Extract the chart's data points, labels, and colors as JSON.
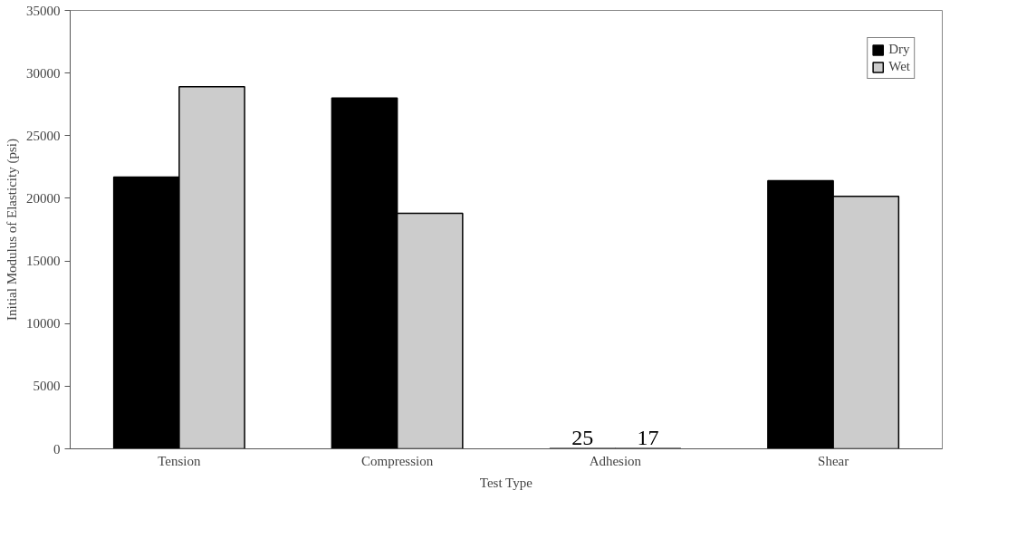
{
  "chart_data": {
    "type": "bar",
    "xlabel": "Test Type",
    "ylabel": "Initial Modulus of Elasticity (psi)",
    "categories": [
      "Tension",
      "Compression",
      "Adhesion",
      "Shear"
    ],
    "series": [
      {
        "name": "Dry",
        "color": "#000000",
        "values": [
          21700,
          28000,
          25,
          21400
        ],
        "value_labels": [
          null,
          null,
          "25",
          null
        ]
      },
      {
        "name": "Wet",
        "color": "#cccccc",
        "values": [
          28900,
          18800,
          17,
          20150
        ],
        "value_labels": [
          null,
          null,
          "17",
          null
        ]
      }
    ],
    "ylim": [
      0,
      35000
    ],
    "yticks": [
      0,
      5000,
      10000,
      15000,
      20000,
      25000,
      30000,
      35000
    ],
    "grid": false,
    "legend": "top right"
  }
}
